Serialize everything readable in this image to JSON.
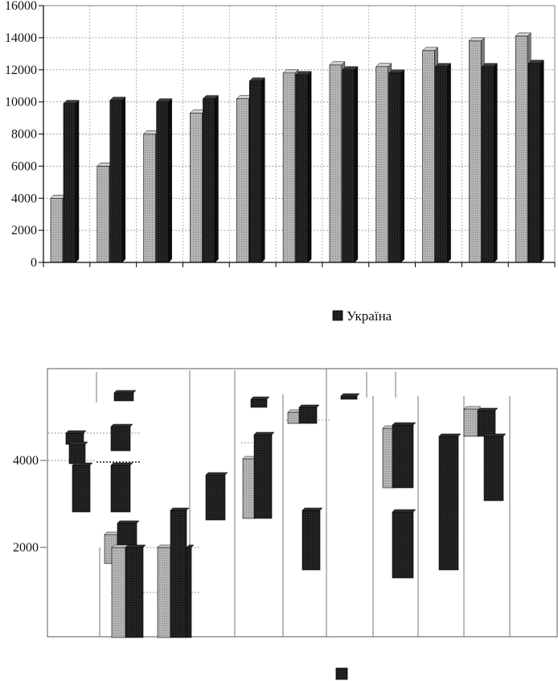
{
  "chart_data": [
    {
      "type": "bar",
      "categories": [
        "",
        "",
        "",
        "",
        "",
        "",
        "",
        "",
        "",
        "",
        ""
      ],
      "series": [
        {
          "values": [
            4000,
            6000,
            8000,
            9300,
            10200,
            11800,
            12300,
            12200,
            13200,
            13800,
            14100
          ]
        },
        {
          "name": "Україна",
          "values": [
            9900,
            10100,
            10000,
            10200,
            11300,
            11700,
            12000,
            11800,
            12200,
            12200,
            12400
          ]
        }
      ],
      "ylim": [
        0,
        16000
      ],
      "yticks": [
        "0",
        "2000",
        "4000",
        "6000",
        "8000",
        "10000",
        "12000",
        "14000",
        "16000"
      ],
      "grid": true,
      "legend": "bottom-right",
      "colors": [
        "#a9a9a9",
        "#1c1c1c"
      ]
    },
    {
      "type": "bar",
      "yticks": [
        "2000",
        "4000"
      ],
      "grid": true,
      "legend": "bottom",
      "colors": [
        "#b0b0b0",
        "#1c1c1c"
      ]
    }
  ]
}
